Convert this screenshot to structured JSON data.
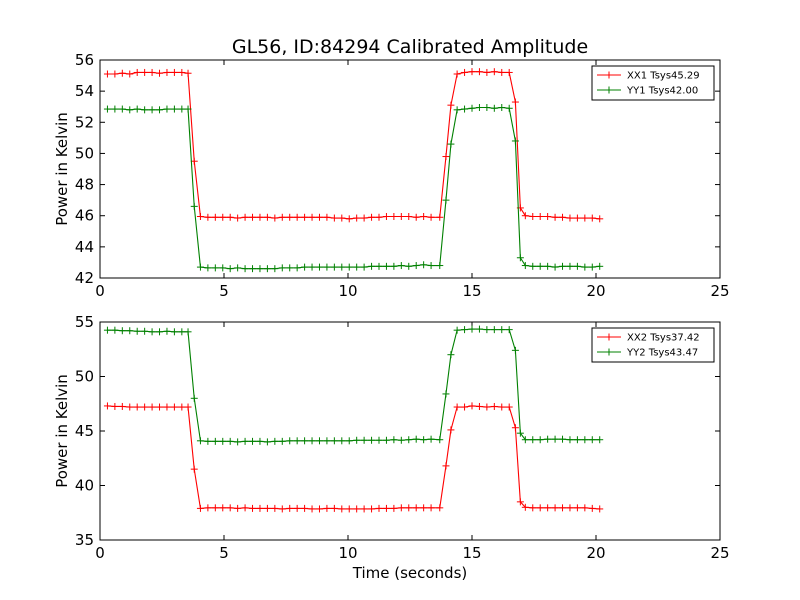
{
  "figure": {
    "title": "GL56, ID:84294 Calibrated Amplitude",
    "xlabel": "Time (seconds)"
  },
  "chart_data": [
    {
      "type": "line",
      "title": "GL56, ID:84294 Calibrated Amplitude",
      "xlabel": "",
      "ylabel": "Power in Kelvin",
      "xlim": [
        0,
        25
      ],
      "ylim": [
        42,
        56
      ],
      "xticks": [
        "0",
        "5",
        "10",
        "15",
        "20",
        "25"
      ],
      "yticks": [
        "42",
        "44",
        "46",
        "48",
        "50",
        "52",
        "54",
        "56"
      ],
      "grid": false,
      "legend_position": "top-right",
      "x": [
        0.3,
        0.6,
        0.9,
        1.2,
        1.5,
        1.8,
        2.1,
        2.4,
        2.7,
        3.0,
        3.3,
        3.55,
        3.8,
        4.05,
        4.35,
        4.65,
        4.95,
        5.25,
        5.55,
        5.85,
        6.15,
        6.45,
        6.75,
        7.05,
        7.35,
        7.65,
        7.95,
        8.25,
        8.55,
        8.85,
        9.15,
        9.45,
        9.75,
        10.05,
        10.35,
        10.65,
        10.95,
        11.25,
        11.55,
        11.85,
        12.15,
        12.45,
        12.75,
        13.05,
        13.35,
        13.7,
        13.95,
        14.15,
        14.4,
        14.7,
        15.0,
        15.3,
        15.6,
        15.9,
        16.2,
        16.5,
        16.75,
        16.95,
        17.15,
        17.45,
        17.75,
        18.05,
        18.35,
        18.65,
        18.95,
        19.25,
        19.55,
        19.85,
        20.15
      ],
      "series": [
        {
          "name": "XX1 Tsys45.29",
          "color": "#ff0000",
          "values": [
            55.1,
            55.1,
            55.15,
            55.1,
            55.2,
            55.2,
            55.2,
            55.15,
            55.2,
            55.2,
            55.2,
            55.15,
            49.5,
            45.95,
            45.9,
            45.9,
            45.9,
            45.9,
            45.85,
            45.9,
            45.9,
            45.9,
            45.9,
            45.85,
            45.9,
            45.9,
            45.9,
            45.9,
            45.9,
            45.9,
            45.9,
            45.85,
            45.85,
            45.8,
            45.85,
            45.85,
            45.9,
            45.9,
            45.95,
            45.95,
            45.95,
            45.95,
            45.9,
            45.95,
            45.9,
            45.9,
            49.8,
            53.1,
            55.1,
            55.2,
            55.25,
            55.25,
            55.2,
            55.25,
            55.2,
            55.2,
            53.3,
            46.5,
            46.0,
            45.95,
            45.95,
            45.95,
            45.9,
            45.9,
            45.85,
            45.85,
            45.85,
            45.85,
            45.8
          ]
        },
        {
          "name": "YY1 Tsys42.00",
          "color": "#008000",
          "values": [
            52.85,
            52.85,
            52.85,
            52.8,
            52.85,
            52.8,
            52.8,
            52.8,
            52.85,
            52.85,
            52.85,
            52.85,
            46.6,
            42.7,
            42.65,
            42.65,
            42.65,
            42.6,
            42.65,
            42.6,
            42.6,
            42.6,
            42.6,
            42.6,
            42.65,
            42.65,
            42.65,
            42.7,
            42.7,
            42.7,
            42.7,
            42.7,
            42.7,
            42.7,
            42.7,
            42.7,
            42.75,
            42.75,
            42.75,
            42.75,
            42.8,
            42.75,
            42.8,
            42.85,
            42.8,
            42.8,
            47.0,
            50.6,
            52.8,
            52.85,
            52.9,
            52.95,
            52.95,
            52.9,
            52.95,
            52.9,
            50.8,
            43.3,
            42.8,
            42.75,
            42.75,
            42.75,
            42.7,
            42.75,
            42.75,
            42.75,
            42.7,
            42.7,
            42.75
          ]
        }
      ]
    },
    {
      "type": "line",
      "title": "",
      "xlabel": "Time (seconds)",
      "ylabel": "Power in Kelvin",
      "xlim": [
        0,
        25
      ],
      "ylim": [
        35,
        55
      ],
      "xticks": [
        "0",
        "5",
        "10",
        "15",
        "20",
        "25"
      ],
      "yticks": [
        "35",
        "40",
        "45",
        "50",
        "55"
      ],
      "grid": false,
      "legend_position": "top-right",
      "x": [
        0.3,
        0.6,
        0.9,
        1.2,
        1.5,
        1.8,
        2.1,
        2.4,
        2.7,
        3.0,
        3.3,
        3.55,
        3.8,
        4.05,
        4.35,
        4.65,
        4.95,
        5.25,
        5.55,
        5.85,
        6.15,
        6.45,
        6.75,
        7.05,
        7.35,
        7.65,
        7.95,
        8.25,
        8.55,
        8.85,
        9.15,
        9.45,
        9.75,
        10.05,
        10.35,
        10.65,
        10.95,
        11.25,
        11.55,
        11.85,
        12.15,
        12.45,
        12.75,
        13.05,
        13.35,
        13.7,
        13.95,
        14.15,
        14.4,
        14.7,
        15.0,
        15.3,
        15.6,
        15.9,
        16.2,
        16.5,
        16.75,
        16.95,
        17.15,
        17.45,
        17.75,
        18.05,
        18.35,
        18.65,
        18.95,
        19.25,
        19.55,
        19.85,
        20.15
      ],
      "series": [
        {
          "name": "XX2 Tsys37.42",
          "color": "#ff0000",
          "values": [
            47.3,
            47.25,
            47.25,
            47.2,
            47.2,
            47.2,
            47.2,
            47.2,
            47.2,
            47.2,
            47.2,
            47.2,
            41.5,
            37.9,
            37.95,
            37.95,
            37.95,
            37.95,
            37.9,
            37.95,
            37.9,
            37.9,
            37.9,
            37.9,
            37.85,
            37.9,
            37.9,
            37.9,
            37.85,
            37.85,
            37.9,
            37.9,
            37.85,
            37.85,
            37.85,
            37.85,
            37.85,
            37.9,
            37.9,
            37.9,
            37.95,
            37.95,
            37.95,
            37.95,
            37.95,
            37.95,
            41.8,
            45.1,
            47.2,
            47.2,
            47.3,
            47.25,
            47.2,
            47.25,
            47.2,
            47.2,
            45.3,
            38.5,
            38.0,
            37.95,
            37.95,
            37.95,
            37.95,
            37.95,
            37.95,
            37.95,
            37.95,
            37.9,
            37.85
          ]
        },
        {
          "name": "YY2 Tsys43.47",
          "color": "#008000",
          "values": [
            54.25,
            54.25,
            54.2,
            54.2,
            54.15,
            54.15,
            54.1,
            54.1,
            54.15,
            54.1,
            54.1,
            54.1,
            48.0,
            44.1,
            44.05,
            44.05,
            44.05,
            44.05,
            44.0,
            44.05,
            44.05,
            44.05,
            44.0,
            44.05,
            44.05,
            44.1,
            44.1,
            44.1,
            44.1,
            44.1,
            44.1,
            44.1,
            44.1,
            44.1,
            44.15,
            44.15,
            44.15,
            44.15,
            44.15,
            44.2,
            44.15,
            44.2,
            44.25,
            44.2,
            44.25,
            44.2,
            48.4,
            52.0,
            54.25,
            54.3,
            54.35,
            54.35,
            54.3,
            54.3,
            54.3,
            54.3,
            52.4,
            44.8,
            44.2,
            44.2,
            44.2,
            44.25,
            44.25,
            44.25,
            44.2,
            44.2,
            44.2,
            44.2,
            44.2
          ]
        }
      ]
    }
  ]
}
